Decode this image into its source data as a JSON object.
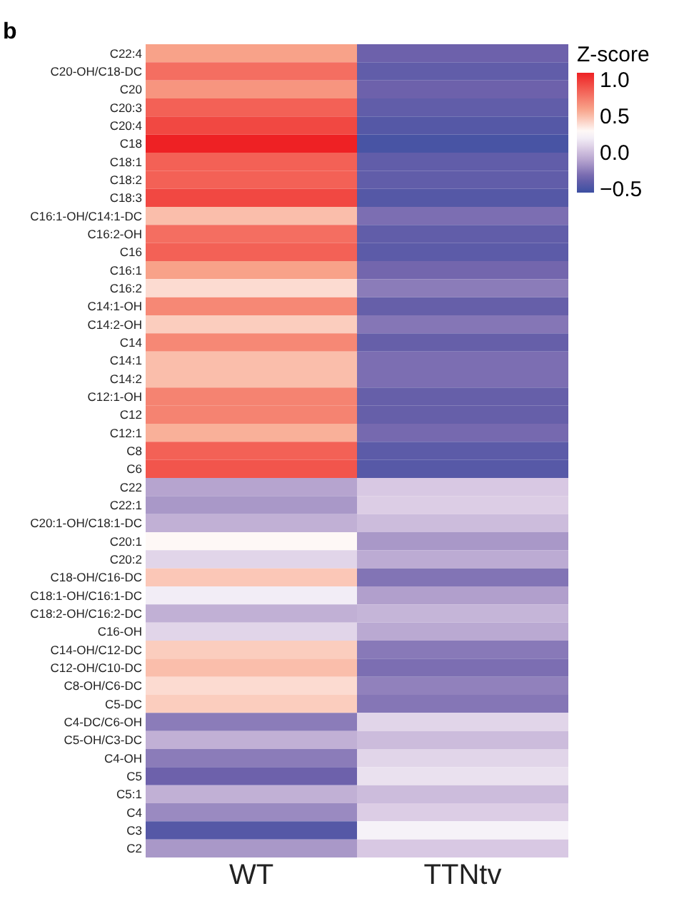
{
  "chart_data": {
    "type": "heatmap",
    "categories": [
      "WT",
      "TTNtv"
    ],
    "y_categories": [
      "C22:4",
      "C20-OH/C18-DC",
      "C20",
      "C20:3",
      "C20:4",
      "C18",
      "C18:1",
      "C18:2",
      "C18:3",
      "C16:1-OH/C14:1-DC",
      "C16:2-OH",
      "C16",
      "C16:1",
      "C16:2",
      "C14:1-OH",
      "C14:2-OH",
      "C14",
      "C14:1",
      "C14:2",
      "C12:1-OH",
      "C12",
      "C12:1",
      "C8",
      "C6",
      "C22",
      "C22:1",
      "C20:1-OH/C18:1-DC",
      "C20:1",
      "C20:2",
      "C18-OH/C16-DC",
      "C18:1-OH/C16:1-DC",
      "C18:2-OH/C16:2-DC",
      "C16-OH",
      "C14-OH/C12-DC",
      "C12-OH/C10-DC",
      "C8-OH/C6-DC",
      "C5-DC",
      "C4-DC/C6-OH",
      "C5-OH/C3-DC",
      "C4-OH",
      "C5",
      "C5:1",
      "C4",
      "C3",
      "C2"
    ],
    "cells": [
      [
        0.6,
        -0.35
      ],
      [
        0.8,
        -0.4
      ],
      [
        0.65,
        -0.35
      ],
      [
        0.85,
        -0.4
      ],
      [
        0.95,
        -0.45
      ],
      [
        1.1,
        -0.5
      ],
      [
        0.85,
        -0.4
      ],
      [
        0.85,
        -0.4
      ],
      [
        0.95,
        -0.45
      ],
      [
        0.5,
        -0.3
      ],
      [
        0.8,
        -0.4
      ],
      [
        0.85,
        -0.42
      ],
      [
        0.6,
        -0.33
      ],
      [
        0.4,
        -0.25
      ],
      [
        0.7,
        -0.38
      ],
      [
        0.45,
        -0.27
      ],
      [
        0.7,
        -0.38
      ],
      [
        0.5,
        -0.3
      ],
      [
        0.5,
        -0.3
      ],
      [
        0.72,
        -0.38
      ],
      [
        0.72,
        -0.38
      ],
      [
        0.55,
        -0.32
      ],
      [
        0.85,
        -0.42
      ],
      [
        0.9,
        -0.44
      ],
      [
        -0.1,
        0.05
      ],
      [
        -0.15,
        0.07
      ],
      [
        -0.05,
        0.0
      ],
      [
        0.3,
        -0.15
      ],
      [
        0.1,
        -0.07
      ],
      [
        0.47,
        -0.28
      ],
      [
        0.2,
        -0.12
      ],
      [
        -0.05,
        -0.03
      ],
      [
        0.1,
        -0.08
      ],
      [
        0.45,
        -0.26
      ],
      [
        0.5,
        -0.3
      ],
      [
        0.4,
        -0.23
      ],
      [
        0.45,
        -0.27
      ],
      [
        -0.25,
        0.1
      ],
      [
        -0.05,
        0.0
      ],
      [
        -0.25,
        0.1
      ],
      [
        -0.35,
        0.15
      ],
      [
        -0.05,
        0.0
      ],
      [
        -0.2,
        0.07
      ],
      [
        -0.45,
        0.22
      ],
      [
        -0.15,
        0.05
      ]
    ],
    "clabel": "Z-score",
    "clim": [
      -0.55,
      1.1
    ],
    "cticks": [
      {
        "value": 1.0,
        "label": "1.0"
      },
      {
        "value": 0.5,
        "label": "0.5"
      },
      {
        "value": 0.0,
        "label": "0.0"
      },
      {
        "value": -0.5,
        "label": "−0.5"
      }
    ],
    "annotations": [
      "b"
    ]
  }
}
